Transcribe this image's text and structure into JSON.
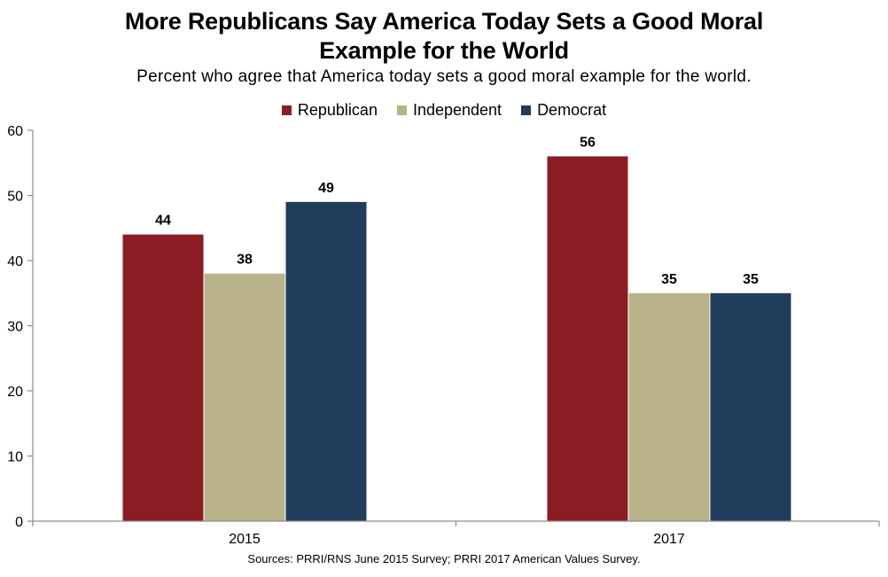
{
  "header": {
    "title_line1": "More Republicans Say America Today Sets a Good Moral",
    "title_line2": "Example for the World",
    "subtitle": "Percent who agree that America today sets a good moral example for the world."
  },
  "legend": {
    "items": [
      {
        "label": "Republican"
      },
      {
        "label": "Independent"
      },
      {
        "label": "Democrat"
      }
    ]
  },
  "footer": {
    "source": "Sources: PRRI/RNS June 2015 Survey; PRRI 2017 American Values Survey."
  },
  "colors": {
    "republican": "#8b1c24",
    "independent": "#b9b38b",
    "democrat": "#213d5c",
    "axis": "#8c8c8c"
  },
  "chart_data": {
    "type": "bar",
    "title": "More Republicans Say America Today Sets a Good Moral Example for the World",
    "subtitle": "Percent who agree that America today sets a good moral example for the world.",
    "categories": [
      "2015",
      "2017"
    ],
    "series": [
      {
        "name": "Republican",
        "values": [
          44,
          56
        ]
      },
      {
        "name": "Independent",
        "values": [
          38,
          35
        ]
      },
      {
        "name": "Democrat",
        "values": [
          49,
          35
        ]
      }
    ],
    "ylim": [
      0,
      60
    ],
    "yticks": [
      "0",
      "10",
      "20",
      "30",
      "40",
      "50",
      "60"
    ],
    "xlabel": "",
    "ylabel": "",
    "grid": false,
    "legend_position": "top-center"
  }
}
